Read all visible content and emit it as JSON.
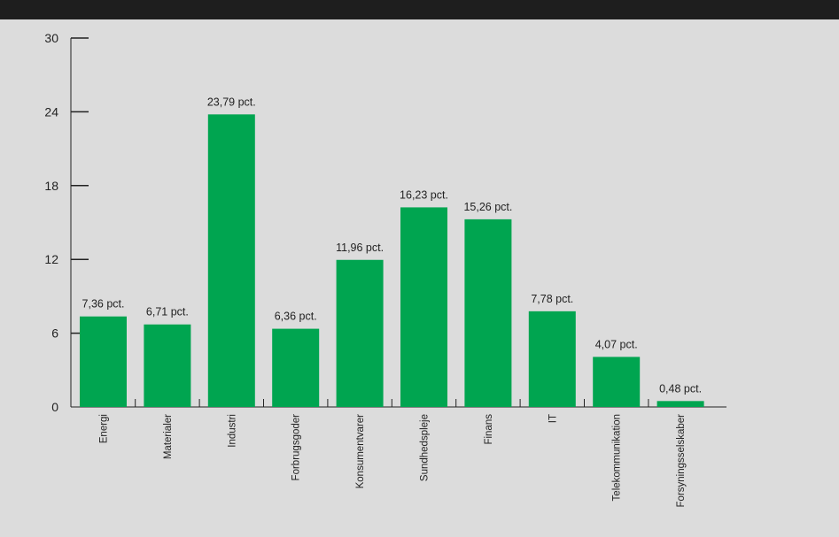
{
  "chart_data": {
    "type": "bar",
    "title": "",
    "xlabel": "",
    "ylabel": "",
    "ylim": [
      0,
      30
    ],
    "yticks": [
      0,
      6,
      12,
      18,
      24,
      30
    ],
    "grid": false,
    "categories": [
      "Energi",
      "Materialer",
      "Industri",
      "Forbrugsgoder",
      "Konsumentvarer",
      "Sundhedspleje",
      "Finans",
      "IT",
      "Telekommunikation",
      "Forsyningsselskaber"
    ],
    "values": [
      7.36,
      6.71,
      23.79,
      6.36,
      11.96,
      16.23,
      15.26,
      7.78,
      4.07,
      0.48
    ],
    "data_labels": [
      "7,36 pct.",
      "6,71 pct.",
      "23,79 pct.",
      "6,36 pct.",
      "11,96 pct.",
      "16,23 pct.",
      "15,26 pct.",
      "7,78 pct.",
      "4,07 pct.",
      "0,48 pct."
    ],
    "colors": {
      "bar": "#00a550",
      "axis": "#222222",
      "background": "#dcdcdc",
      "header": "#1e1e1e"
    }
  }
}
